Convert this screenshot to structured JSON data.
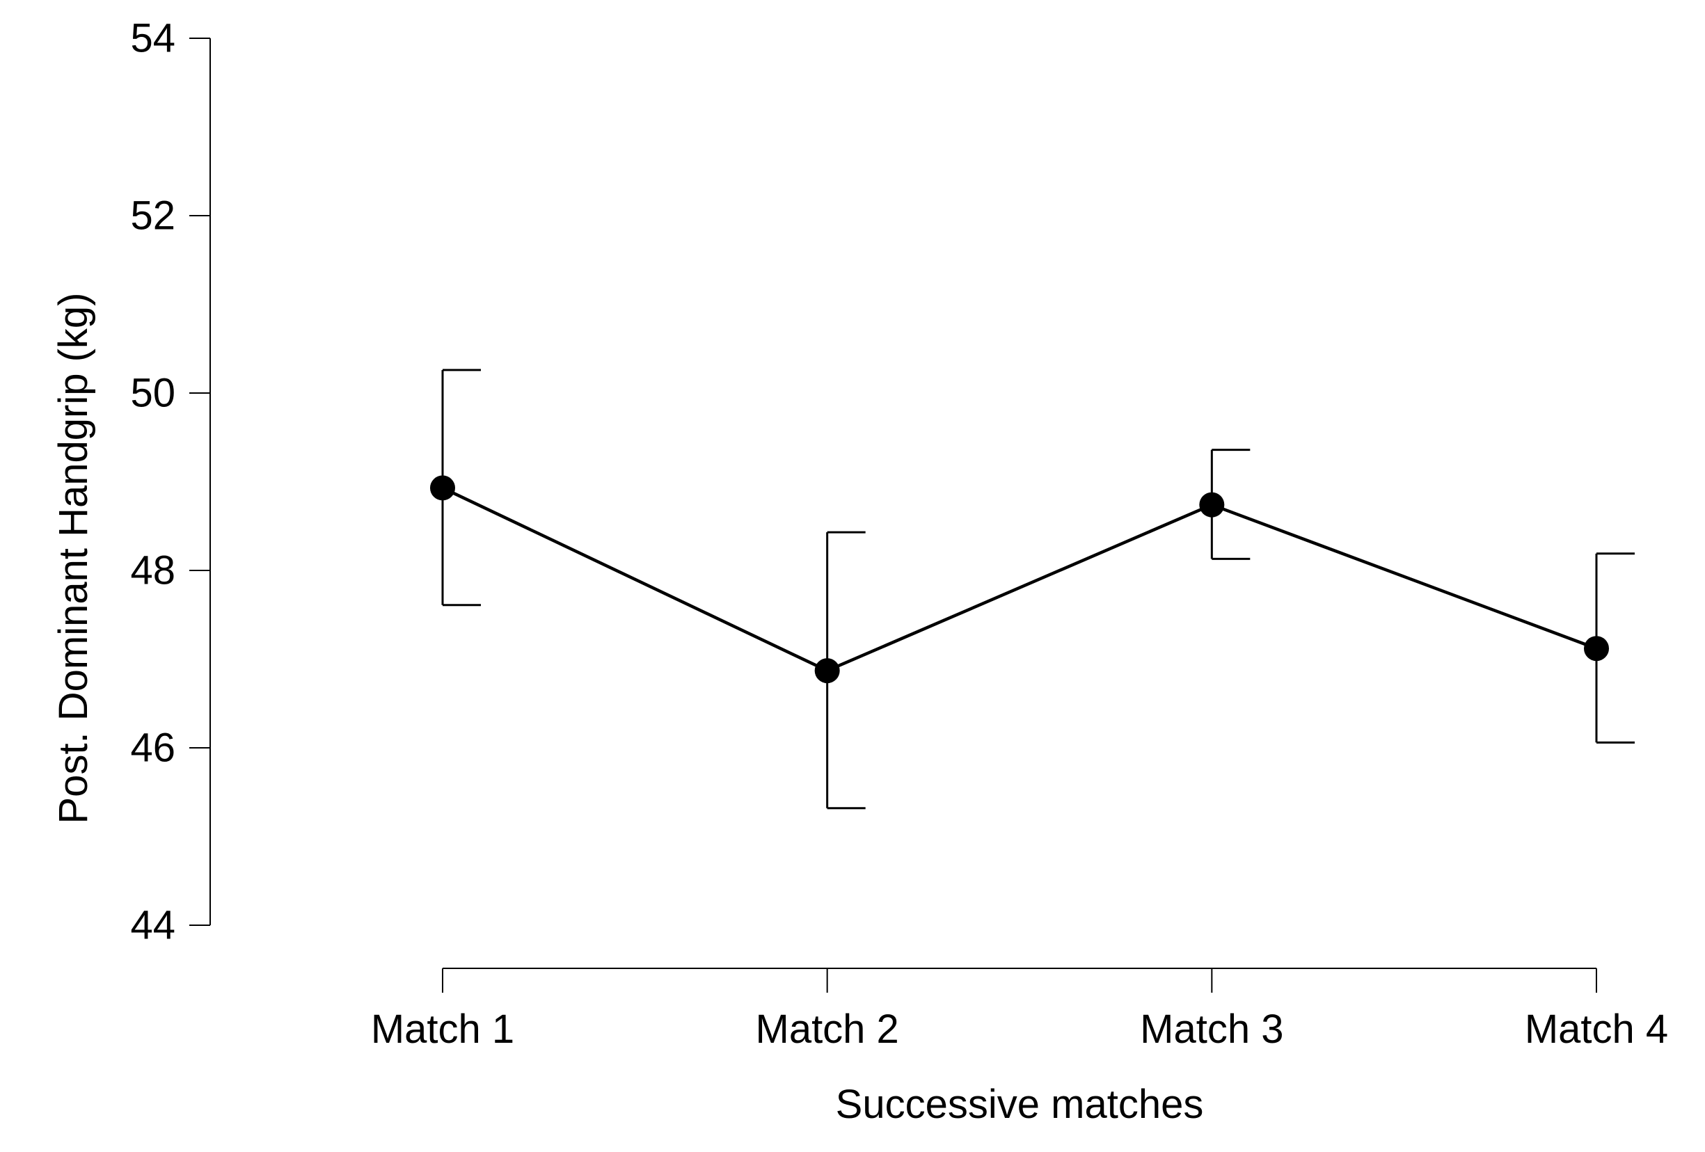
{
  "chart_data": {
    "type": "line",
    "title": "",
    "xlabel": "Successive matches",
    "ylabel": "Post. Dominant Handgrip (kg)",
    "categories": [
      "Match 1",
      "Match 2",
      "Match 3",
      "Match 4"
    ],
    "ylim": [
      44,
      54
    ],
    "yticks": [
      44,
      46,
      48,
      50,
      52,
      54
    ],
    "ytick_labels": [
      "44",
      "46",
      "48",
      "50",
      "52",
      "54"
    ],
    "grid": false,
    "legend": "none",
    "series": [
      {
        "values": [
          48.93,
          46.87,
          48.74,
          47.12
        ],
        "error_low": [
          47.61,
          45.32,
          48.13,
          46.06
        ],
        "error_high": [
          50.26,
          48.43,
          49.36,
          48.19
        ],
        "color": "#000000",
        "marker": "filled-circle"
      }
    ]
  }
}
